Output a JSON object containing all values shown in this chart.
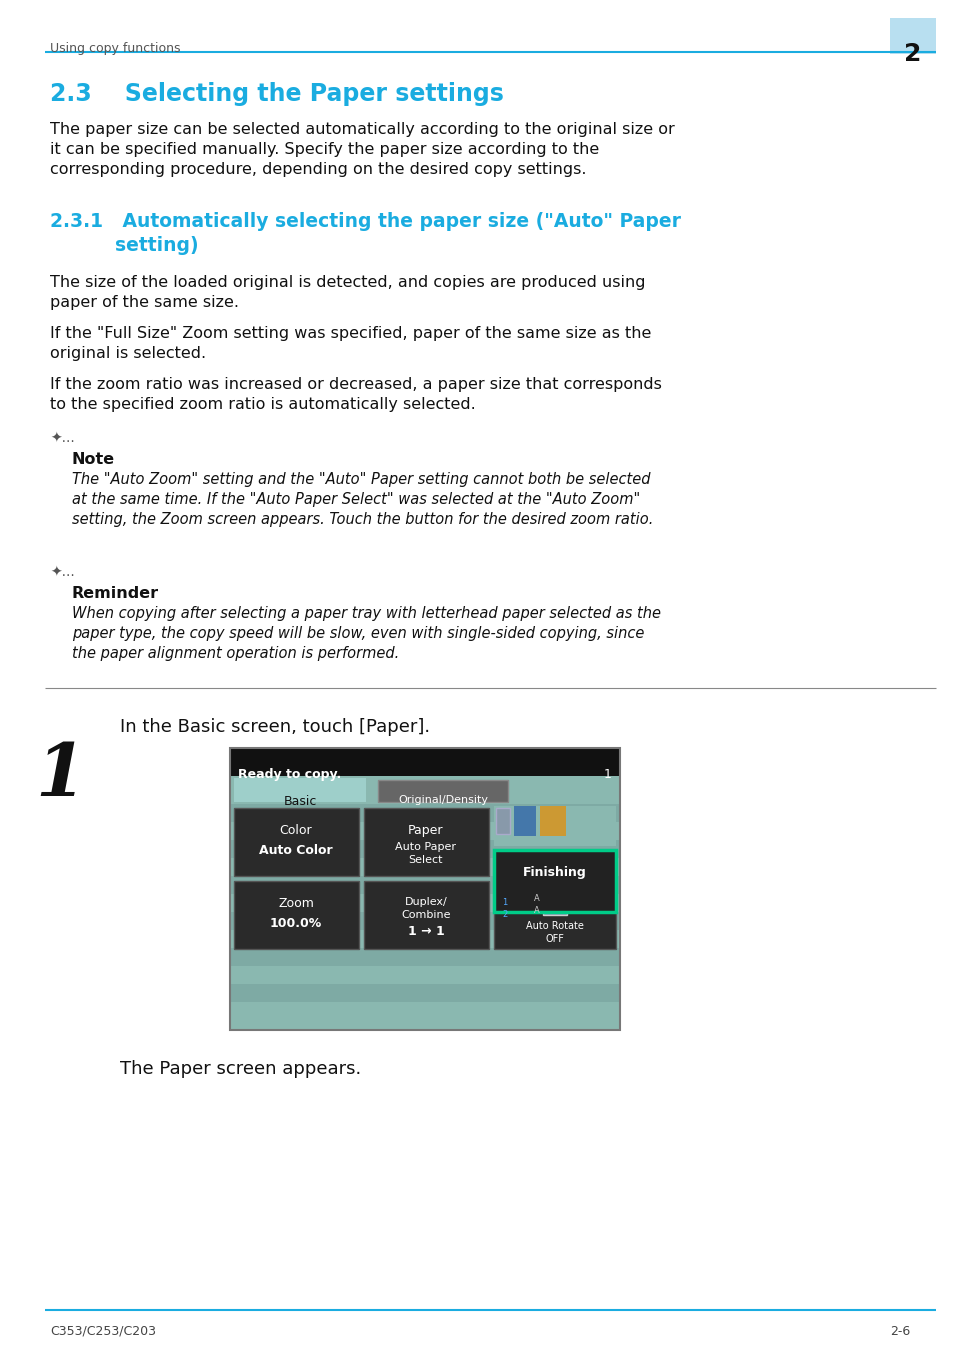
{
  "page_bg": "#ffffff",
  "header_line_color": "#1aace0",
  "header_text": "Using copy functions",
  "header_text_color": "#444444",
  "header_num_bg": "#b8dff0",
  "header_num": "2",
  "title_color": "#1aace0",
  "title": "2.3    Selecting the Paper settings",
  "body_color": "#111111",
  "para1": "The paper size can be selected automatically according to the original size or\nit can be specified manually. Specify the paper size according to the\ncorresponding procedure, depending on the desired copy settings.",
  "subtitle_color": "#1aace0",
  "subtitle1": "2.3.1   Automatically selecting the paper size (\"Auto\" Paper",
  "subtitle2": "          setting)",
  "para2": "The size of the loaded original is detected, and copies are produced using\npaper of the same size.",
  "para3": "If the \"Full Size\" Zoom setting was specified, paper of the same size as the\noriginal is selected.",
  "para4": "If the zoom ratio was increased or decreased, a paper size that corresponds\nto the specified zoom ratio is automatically selected.",
  "note_label": "Note",
  "note_text": "The \"Auto Zoom\" setting and the \"Auto\" Paper setting cannot both be selected\nat the same time. If the \"Auto Paper Select\" was selected at the \"Auto Zoom\"\nsetting, the Zoom screen appears. Touch the button for the desired zoom ratio.",
  "reminder_label": "Reminder",
  "reminder_text": "When copying after selecting a paper tray with letterhead paper selected as the\npaper type, the copy speed will be slow, even with single-sided copying, since\nthe paper alignment operation is performed.",
  "step1_text": "In the Basic screen, touch [Paper].",
  "caption_text": "The Paper screen appears.",
  "footer_left": "C353/C253/C203",
  "footer_right": "2-6",
  "screen_bg": "#8ab8b0",
  "screen_header_bg": "#111111",
  "screen_tab_basic_bg": "#9ecfca",
  "screen_tab_od_bg": "#666666",
  "screen_btn_bg": "#2a2a2a",
  "screen_finishing_border": "#00cc88",
  "screen_finishing_bg": "#222222"
}
